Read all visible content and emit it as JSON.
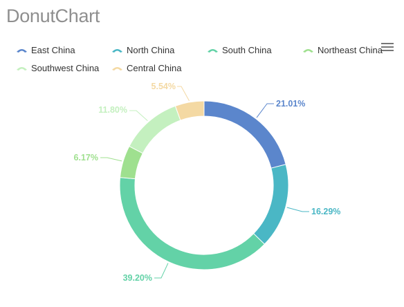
{
  "page": {
    "title": "DonutChart"
  },
  "chart_data": {
    "type": "pie",
    "variant": "donut",
    "title": "DonutChart",
    "legend_position": "top-left",
    "categories": [
      "East China",
      "North China",
      "South China",
      "Northeast China",
      "Southwest China",
      "Central China"
    ],
    "values": [
      21.01,
      16.29,
      39.2,
      6.17,
      11.8,
      5.54
    ],
    "labels": [
      "21.01%",
      "16.29%",
      "39.20%",
      "6.17%",
      "11.80%",
      "5.54%"
    ],
    "colors": [
      "#5b86cc",
      "#4ab7c5",
      "#63d2a7",
      "#9fe08f",
      "#c4f0bf",
      "#f4d9a3"
    ],
    "label_colors": [
      "#5b86cc",
      "#4ab7c5",
      "#63d2a7",
      "#9fe08f",
      "#c4f0bf",
      "#f4d9a3"
    ],
    "legend": [
      {
        "label": "East China",
        "color": "#5b86cc"
      },
      {
        "label": "North China",
        "color": "#4ab7c5"
      },
      {
        "label": "South China",
        "color": "#63d2a7"
      },
      {
        "label": "Northeast China",
        "color": "#9fe08f"
      },
      {
        "label": "Southwest China",
        "color": "#c4f0bf"
      },
      {
        "label": "Central China",
        "color": "#f4d9a3"
      }
    ]
  },
  "toolbar": {
    "menu_icon": "hamburger-menu-icon"
  }
}
